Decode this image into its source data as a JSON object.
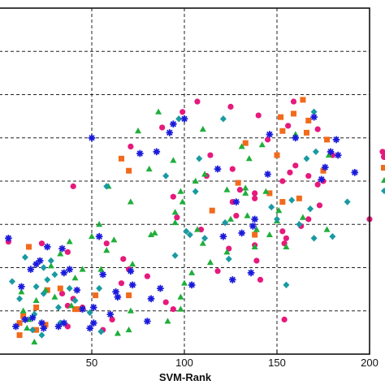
{
  "chart_data": {
    "type": "scatter",
    "title": "",
    "xlabel": "SVM-Rank",
    "ylabel": "",
    "xlim": [
      0,
      200
    ],
    "ylim": [
      0,
      200
    ],
    "x_ticks": [
      50,
      100,
      150,
      200
    ],
    "x_tick_labels": [
      "50",
      "100",
      "150",
      "200"
    ],
    "grid": "dashed",
    "series": [
      {
        "marker": "circle",
        "color": "#e6197d",
        "points": [
          [
            37,
            59
          ],
          [
            40,
            97
          ],
          [
            96,
            79
          ],
          [
            124,
            61
          ],
          [
            145,
            124
          ],
          [
            88,
            131
          ],
          [
            99,
            140
          ],
          [
            107,
            146
          ],
          [
            125,
            143
          ],
          [
            159,
            146
          ],
          [
            140,
            138
          ],
          [
            126,
            107
          ],
          [
            153,
            100
          ],
          [
            157,
            105
          ],
          [
            167,
            103
          ],
          [
            172,
            98
          ],
          [
            175,
            100
          ],
          [
            160,
            109
          ],
          [
            180,
            115
          ],
          [
            207,
            117
          ],
          [
            138,
            93
          ],
          [
            109,
            72
          ],
          [
            153,
            71
          ],
          [
            118,
            48
          ],
          [
            154,
            20
          ],
          [
            23,
            64
          ],
          [
            5,
            65
          ],
          [
            37,
            16
          ],
          [
            61,
            20
          ],
          [
            90,
            30
          ],
          [
            40,
            32
          ],
          [
            66,
            41
          ],
          [
            58,
            64
          ],
          [
            45,
            27
          ],
          [
            154,
            64
          ],
          [
            71,
            120
          ],
          [
            112,
            103
          ],
          [
            130,
            95
          ],
          [
            138,
            63
          ],
          [
            167,
            78
          ],
          [
            141,
            43
          ],
          [
            156,
            132
          ],
          [
            128,
            80
          ],
          [
            173,
            86
          ],
          [
            163,
            74
          ],
          [
            67,
            55
          ],
          [
            80,
            45
          ],
          [
            37,
            28
          ],
          [
            94,
            26
          ],
          [
            34,
            35
          ],
          [
            56,
            14
          ],
          [
            70,
            49
          ],
          [
            114,
            115
          ],
          [
            126,
            88
          ],
          [
            94,
            91
          ],
          [
            200,
            78
          ],
          [
            172,
            130
          ],
          [
            138,
            90
          ],
          [
            155,
            67
          ],
          [
            139,
            54
          ]
        ]
      },
      {
        "marker": "square",
        "color": "#f26a1b",
        "points": [
          [
            159,
            139
          ],
          [
            167,
            135
          ],
          [
            153,
            129
          ],
          [
            164,
            147
          ],
          [
            166,
            128
          ],
          [
            150,
            115
          ],
          [
            152,
            137
          ],
          [
            129,
            99
          ],
          [
            115,
            83
          ],
          [
            175,
            106
          ],
          [
            177,
            124
          ],
          [
            146,
            93
          ],
          [
            66,
            113
          ],
          [
            70,
            106
          ],
          [
            33,
            38
          ],
          [
            52,
            34
          ],
          [
            41,
            26
          ],
          [
            70,
            34
          ],
          [
            20,
            27
          ],
          [
            11,
            18
          ],
          [
            25,
            17
          ],
          [
            13,
            22
          ],
          [
            11,
            11
          ],
          [
            16,
            62
          ],
          [
            43,
            26
          ],
          [
            153,
            88
          ],
          [
            133,
            122
          ],
          [
            162,
            90
          ],
          [
            138,
            69
          ],
          [
            20,
            14
          ],
          [
            26,
            37
          ]
        ]
      },
      {
        "marker": "triangle",
        "color": "#1fae3a",
        "points": [
          [
            86,
            140
          ],
          [
            75,
            129
          ],
          [
            94,
            112
          ],
          [
            110,
            130
          ],
          [
            131,
            120
          ],
          [
            135,
            113
          ],
          [
            142,
            121
          ],
          [
            160,
            127
          ],
          [
            81,
            107
          ],
          [
            59,
            97
          ],
          [
            71,
            88
          ],
          [
            98,
            94
          ],
          [
            111,
            104
          ],
          [
            95,
            82
          ],
          [
            84,
            70
          ],
          [
            54,
            75
          ],
          [
            50,
            68
          ],
          [
            62,
            66
          ],
          [
            38,
            65
          ],
          [
            33,
            58
          ],
          [
            28,
            51
          ],
          [
            41,
            44
          ],
          [
            30,
            33
          ],
          [
            25,
            37
          ],
          [
            16,
            20
          ],
          [
            15,
            15
          ],
          [
            39,
            28
          ],
          [
            19,
            7
          ],
          [
            13,
            25
          ],
          [
            64,
            12
          ],
          [
            91,
            19
          ],
          [
            71,
            25
          ],
          [
            125,
            78
          ],
          [
            110,
            64
          ],
          [
            123,
            95
          ],
          [
            144,
            94
          ],
          [
            150,
            77
          ],
          [
            177,
            72
          ],
          [
            164,
            79
          ],
          [
            146,
            69
          ],
          [
            139,
            72
          ],
          [
            155,
            62
          ],
          [
            114,
            53
          ],
          [
            133,
            96
          ],
          [
            138,
            62
          ],
          [
            178,
            115
          ],
          [
            107,
            72
          ],
          [
            98,
            33
          ],
          [
            70,
            14
          ],
          [
            133,
            93
          ],
          [
            55,
            49
          ],
          [
            104,
            47
          ],
          [
            45,
            49
          ],
          [
            12,
            36
          ],
          [
            95,
            76
          ],
          [
            151,
            83
          ],
          [
            123,
            59
          ],
          [
            82,
            69
          ],
          [
            99,
            88
          ],
          [
            106,
            100
          ],
          [
            134,
            80
          ],
          [
            20,
            31
          ],
          [
            58,
            60
          ],
          [
            72,
            52
          ],
          [
            100,
            41
          ],
          [
            98,
            26
          ]
        ]
      },
      {
        "marker": "diamond",
        "color": "#1a9aa2",
        "points": [
          [
            97,
            136
          ],
          [
            121,
            136
          ],
          [
            108,
            113
          ],
          [
            90,
            103
          ],
          [
            58,
            97
          ],
          [
            54,
            38
          ],
          [
            106,
            94
          ],
          [
            103,
            69
          ],
          [
            111,
            67
          ],
          [
            166,
            113
          ],
          [
            168,
            84
          ],
          [
            158,
            89
          ],
          [
            180,
            68
          ],
          [
            122,
            76
          ],
          [
            162,
            75
          ],
          [
            170,
            67
          ],
          [
            171,
            117
          ],
          [
            101,
            71
          ],
          [
            95,
            57
          ],
          [
            150,
            78
          ],
          [
            188,
            88
          ],
          [
            147,
            85
          ],
          [
            7,
            42
          ],
          [
            24,
            50
          ],
          [
            32,
            27
          ],
          [
            11,
            32
          ],
          [
            20,
            39
          ],
          [
            19,
            23
          ],
          [
            30,
            46
          ],
          [
            14,
            56
          ],
          [
            24,
            35
          ],
          [
            23,
            11
          ],
          [
            18,
            14
          ],
          [
            49,
            24
          ],
          [
            33,
            18
          ],
          [
            28,
            54
          ],
          [
            38,
            38
          ],
          [
            41,
            31
          ],
          [
            26,
            43
          ],
          [
            55,
            13
          ],
          [
            155,
            40
          ],
          [
            170,
            140
          ],
          [
            124,
            55
          ]
        ]
      },
      {
        "marker": "asterisk",
        "color": "#1a1adb",
        "points": [
          [
            50,
            125
          ],
          [
            85,
            117
          ],
          [
            76,
            116
          ],
          [
            94,
            133
          ],
          [
            100,
            136
          ],
          [
            92,
            128
          ],
          [
            118,
            107
          ],
          [
            146,
            127
          ],
          [
            160,
            125
          ],
          [
            179,
            117
          ],
          [
            182,
            124
          ],
          [
            170,
            137
          ],
          [
            183,
            115
          ],
          [
            174,
            101
          ],
          [
            176,
            108
          ],
          [
            128,
            88
          ],
          [
            145,
            104
          ],
          [
            192,
            105
          ],
          [
            213,
            81
          ],
          [
            138,
            78
          ],
          [
            121,
            68
          ],
          [
            137,
            74
          ],
          [
            131,
            70
          ],
          [
            126,
            43
          ],
          [
            136,
            47
          ],
          [
            35,
            18
          ],
          [
            51,
            27
          ],
          [
            64,
            33
          ],
          [
            35,
            47
          ],
          [
            20,
            52
          ],
          [
            9,
            16
          ],
          [
            18,
            21
          ],
          [
            24,
            15
          ],
          [
            42,
            37
          ],
          [
            45,
            26
          ],
          [
            49,
            15
          ],
          [
            56,
            46
          ],
          [
            51,
            18
          ],
          [
            82,
            32
          ],
          [
            60,
            23
          ],
          [
            63,
            36
          ],
          [
            71,
            48
          ],
          [
            87,
            38
          ],
          [
            104,
            40
          ],
          [
            72,
            40
          ],
          [
            54,
            68
          ],
          [
            34,
            61
          ],
          [
            22,
            54
          ],
          [
            38,
            49
          ],
          [
            80,
            19
          ],
          [
            23,
            18
          ],
          [
            32,
            16
          ],
          [
            14,
            20
          ],
          [
            12,
            39
          ],
          [
            17,
            49
          ],
          [
            26,
            62
          ],
          [
            5,
            67
          ]
        ]
      }
    ]
  }
}
